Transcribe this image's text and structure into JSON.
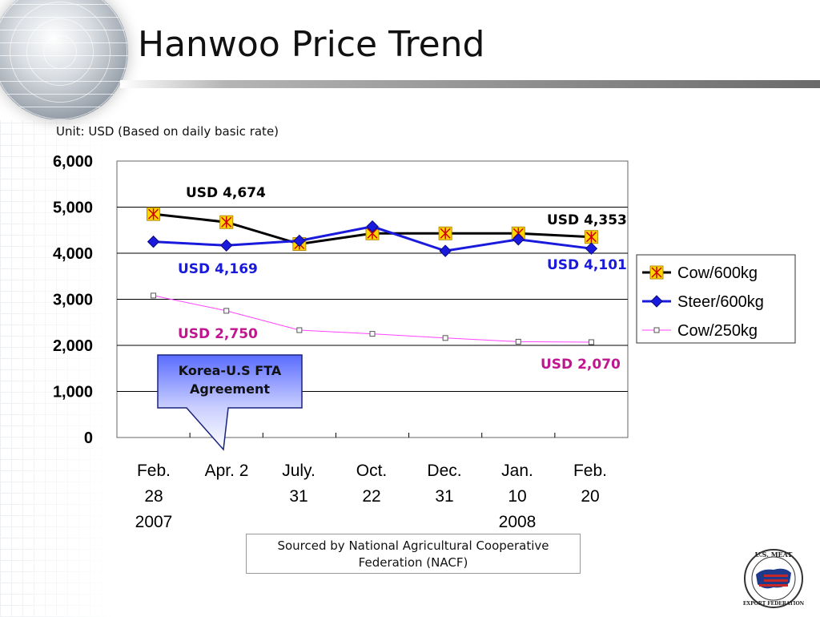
{
  "slide": {
    "title": "Hanwoo Price Trend",
    "unit_note": "Unit: USD (Based on daily basic rate)",
    "source_note": "Sourced by National Agricultural Cooperative Federation (NACF)",
    "callout": "Korea-U.S FTA Agreement",
    "logo_alt": "U.S. Meat Export Federation logo"
  },
  "chart_data": {
    "type": "line",
    "categories": [
      [
        "Feb.",
        "28",
        "2007"
      ],
      [
        "Apr. 2",
        "",
        ""
      ],
      [
        "July.",
        "31",
        ""
      ],
      [
        "Oct.",
        "22",
        ""
      ],
      [
        "Dec.",
        "31",
        ""
      ],
      [
        "Jan.",
        "10",
        "2008"
      ],
      [
        "Feb.",
        "20",
        ""
      ]
    ],
    "ylim": [
      0,
      6000
    ],
    "yticks": [
      "0",
      "1,000",
      "2,000",
      "3,000",
      "4,000",
      "5,000",
      "6,000"
    ],
    "grid": true,
    "legend_position": "right",
    "series": [
      {
        "name": "Cow/600kg",
        "values": [
          4850,
          4674,
          4200,
          4430,
          4430,
          4430,
          4353
        ],
        "line_color": "#000000",
        "marker": "asterisk-square",
        "marker_color": "#ffd700"
      },
      {
        "name": "Steer/600kg",
        "values": [
          4250,
          4169,
          4270,
          4580,
          4050,
          4300,
          4101
        ],
        "line_color": "#1a1adc",
        "marker": "diamond",
        "marker_color": "#1a1adc"
      },
      {
        "name": "Cow/250kg",
        "values": [
          3080,
          2750,
          2330,
          2250,
          2160,
          2080,
          2070
        ],
        "line_color": "#ff44ff",
        "marker": "square-open",
        "marker_color": "#ffffff"
      }
    ],
    "annotations": [
      {
        "text": "USD 4,674",
        "color": "#000000"
      },
      {
        "text": "USD 4,353",
        "color": "#000000"
      },
      {
        "text": "USD 4,169",
        "color": "#1a1adc"
      },
      {
        "text": "USD 4,101",
        "color": "#1a1adc"
      },
      {
        "text": "USD 2,750",
        "color": "#c0168f"
      },
      {
        "text": "USD 2,070",
        "color": "#c0168f"
      }
    ]
  }
}
